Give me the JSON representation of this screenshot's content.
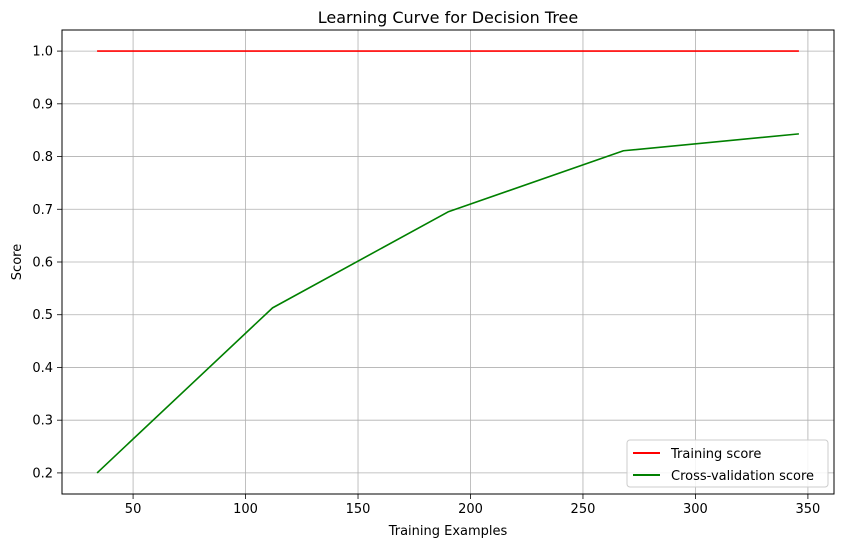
{
  "chart_data": {
    "type": "line",
    "title": "Learning Curve for Decision Tree",
    "xlabel": "Training Examples",
    "ylabel": "Score",
    "xlim": [
      18.4,
      361.6
    ],
    "ylim": [
      0.16,
      1.04
    ],
    "xticks": [
      50,
      100,
      150,
      200,
      250,
      300,
      350
    ],
    "yticks": [
      0.2,
      0.3,
      0.4,
      0.5,
      0.6,
      0.7,
      0.8,
      0.9,
      1.0
    ],
    "xtick_labels": [
      "50",
      "100",
      "150",
      "200",
      "250",
      "300",
      "350"
    ],
    "ytick_labels": [
      "0.2",
      "0.3",
      "0.4",
      "0.5",
      "0.6",
      "0.7",
      "0.8",
      "0.9",
      "1.0"
    ],
    "grid": true,
    "legend_position": "bottom-right",
    "series": [
      {
        "name": "Training score",
        "color": "#ff0000",
        "x": [
          34,
          112,
          190,
          268,
          346
        ],
        "y": [
          1.0,
          1.0,
          1.0,
          1.0,
          1.0
        ]
      },
      {
        "name": "Cross-validation score",
        "color": "#008000",
        "x": [
          34,
          112,
          190,
          268,
          346
        ],
        "y": [
          0.2,
          0.513,
          0.695,
          0.811,
          0.843
        ]
      }
    ]
  }
}
